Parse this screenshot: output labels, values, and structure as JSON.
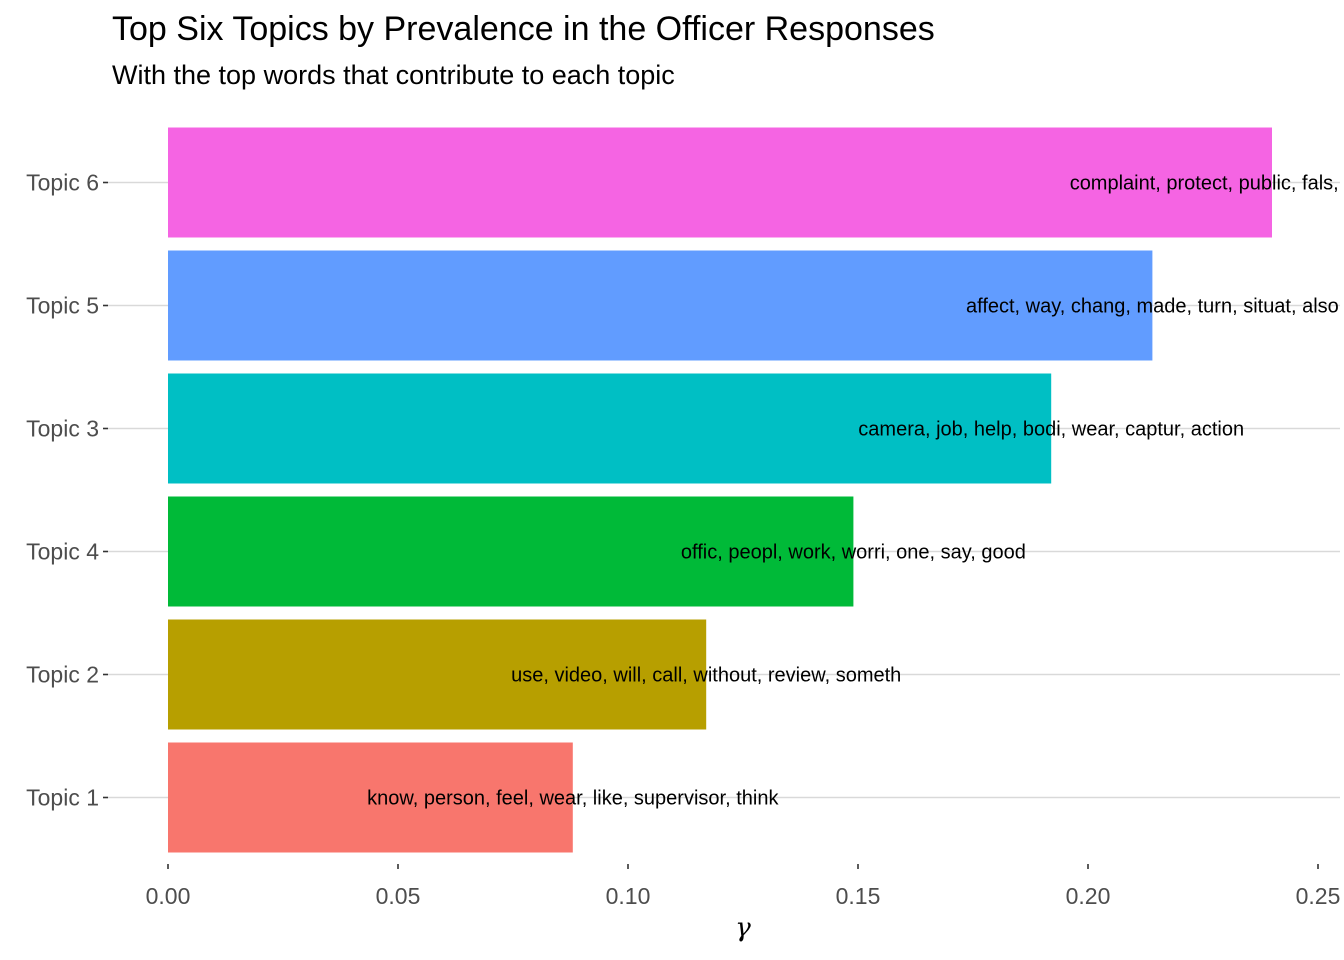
{
  "title": "Top Six Topics by Prevalence in the Officer Responses",
  "subtitle": "With the top words that contribute to each topic",
  "chart_data": {
    "type": "bar",
    "orientation": "horizontal",
    "categories": [
      "Topic 1",
      "Topic 2",
      "Topic 4",
      "Topic 3",
      "Topic 5",
      "Topic 6"
    ],
    "values": [
      0.088,
      0.117,
      0.149,
      0.192,
      0.214,
      0.24
    ],
    "labels": [
      "know, person, feel, wear, like, supervisor, think",
      "use, video, will, call, without, review, someth",
      "offic, peopl, work, worri, one, say, good",
      "camera, job, help, bodi, wear, captur, action",
      "affect, way, chang, made, turn, situat, also",
      "complaint, protect, public, fals, make, tool, tim"
    ],
    "colors": [
      "#F8766D",
      "#B79F00",
      "#00BA38",
      "#00BFC4",
      "#619CFF",
      "#F564E3"
    ],
    "xlabel": "γ",
    "ylabel": "",
    "xlim": [
      0,
      0.25
    ],
    "xticks": [
      "0.00",
      "0.05",
      "0.10",
      "0.15",
      "0.20",
      "0.25"
    ],
    "xtick_values": [
      0,
      0.05,
      0.1,
      0.15,
      0.2,
      0.25
    ],
    "grid": "horizontal major lines only",
    "legend": "none"
  }
}
